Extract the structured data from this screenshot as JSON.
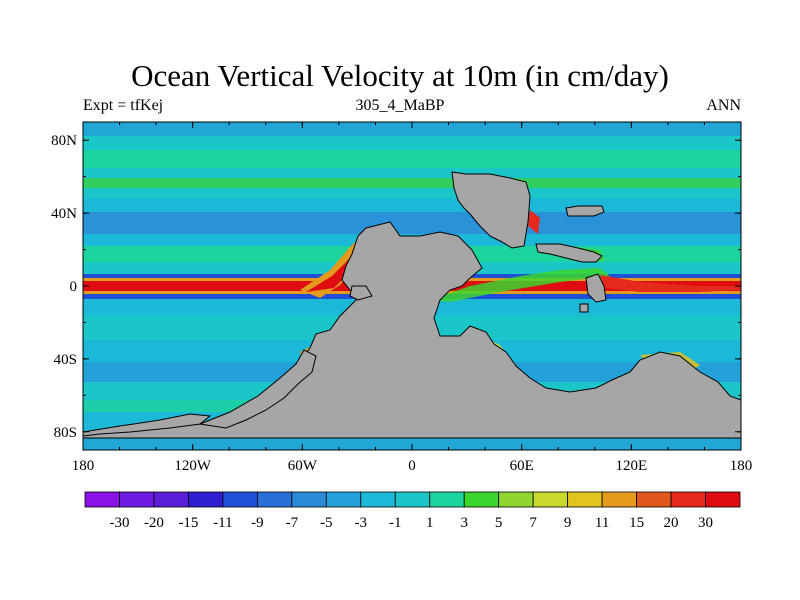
{
  "title": "Ocean Vertical Velocity at 10m (in cm/day)",
  "subtitle_left": "Expt = tfKej",
  "subtitle_center": "305_4_MaBP",
  "subtitle_right": "ANN",
  "map": {
    "lon_ticks": [
      "180",
      "120W",
      "60W",
      "0",
      "60E",
      "120E",
      "180"
    ],
    "lat_ticks": [
      "80N",
      "40N",
      "0",
      "40S",
      "80S"
    ],
    "land_color": "#a6a6a6",
    "ocean_background": "#1bbfd6"
  },
  "colorbar": {
    "labels": [
      "-30",
      "-20",
      "-15",
      "-11",
      "-9",
      "-7",
      "-5",
      "-3",
      "-1",
      "1",
      "3",
      "5",
      "7",
      "9",
      "11",
      "15",
      "20",
      "30"
    ],
    "colors": [
      "#8a12e6",
      "#6f1ae0",
      "#5a1ed8",
      "#2f1fd0",
      "#1f4fd6",
      "#2a6fd8",
      "#2b8ad8",
      "#22a2d8",
      "#1cb8d8",
      "#1ac6c8",
      "#1dd39e",
      "#3cd62e",
      "#8fd62e",
      "#c9d92d",
      "#e2c41f",
      "#e39a1d",
      "#e0581b",
      "#e5291c",
      "#df0d12"
    ]
  }
}
